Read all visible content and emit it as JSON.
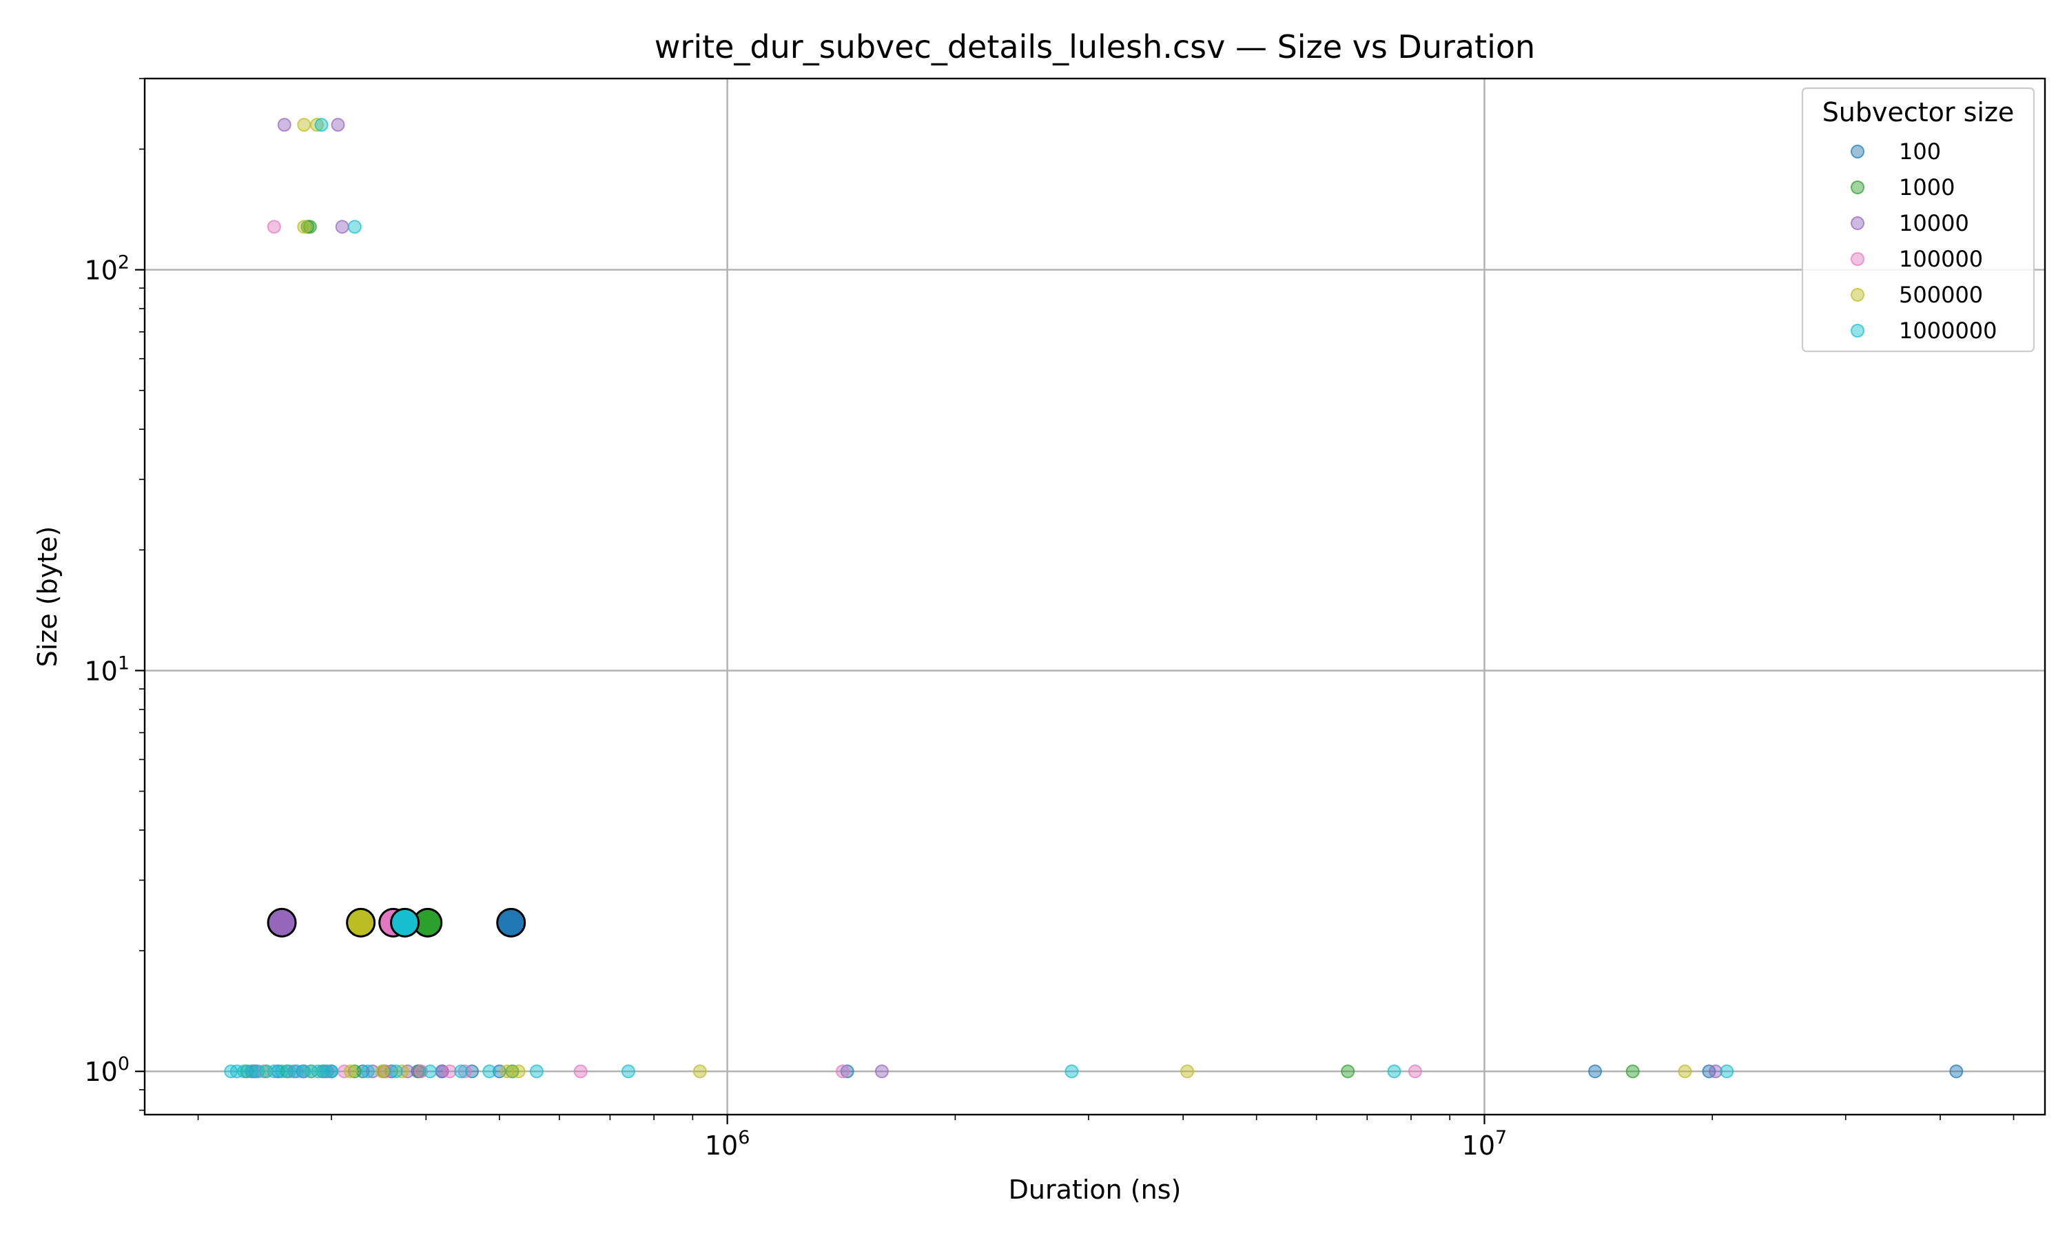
{
  "chart_data": {
    "type": "scatter",
    "title": "write_dur_subvec_details_lulesh.csv — Size vs Duration",
    "xlabel": "Duration (ns)",
    "ylabel": "Size (byte)",
    "xscale": "log",
    "yscale": "log",
    "xlim": [
      170000,
      55000000
    ],
    "ylim": [
      0.78,
      300
    ],
    "grid": true,
    "x_major_ticks": [
      {
        "value": 1000000,
        "base": "10",
        "exp": "6"
      },
      {
        "value": 10000000,
        "base": "10",
        "exp": "7"
      }
    ],
    "y_major_ticks": [
      {
        "value": 1,
        "base": "10",
        "exp": "0"
      },
      {
        "value": 10,
        "base": "10",
        "exp": "1"
      },
      {
        "value": 100,
        "base": "10",
        "exp": "2"
      }
    ],
    "legend": {
      "title": "Subvector size",
      "placement": "top-right"
    },
    "series": [
      {
        "name": "100",
        "color": "#1f77b4",
        "points": [
          [
            238000,
            1
          ],
          [
            255000,
            1
          ],
          [
            275000,
            1
          ],
          [
            300000,
            1
          ],
          [
            330000,
            1
          ],
          [
            360000,
            1
          ],
          [
            390000,
            1
          ],
          [
            420000,
            1
          ],
          [
            460000,
            1
          ],
          [
            500000,
            1
          ],
          [
            1440000,
            1
          ],
          [
            14000000,
            1
          ],
          [
            19800000,
            1
          ],
          [
            42000000,
            1
          ]
        ],
        "mean": [
          518000,
          2.35
        ]
      },
      {
        "name": "1000",
        "color": "#2ca02c",
        "points": [
          [
            232000,
            1
          ],
          [
            262000,
            1
          ],
          [
            292000,
            1
          ],
          [
            322000,
            1
          ],
          [
            352000,
            1
          ],
          [
            392000,
            1
          ],
          [
            520000,
            1
          ],
          [
            6600000,
            1
          ],
          [
            15700000,
            1
          ],
          [
            281000,
            128
          ],
          [
            279000,
            128
          ]
        ],
        "mean": [
          402000,
          2.35
        ]
      },
      {
        "name": "10000",
        "color": "#9467bd",
        "points": [
          [
            236000,
            1
          ],
          [
            268000,
            1
          ],
          [
            296000,
            1
          ],
          [
            340000,
            1
          ],
          [
            378000,
            1
          ],
          [
            420000,
            1
          ],
          [
            1600000,
            1
          ],
          [
            20200000,
            1
          ],
          [
            260000,
            230
          ],
          [
            306000,
            230
          ],
          [
            310000,
            128
          ]
        ],
        "mean": [
          258000,
          2.35
        ]
      },
      {
        "name": "100000",
        "color": "#e377c2",
        "points": [
          [
            244000,
            1
          ],
          [
            276000,
            1
          ],
          [
            312000,
            1
          ],
          [
            354000,
            1
          ],
          [
            394000,
            1
          ],
          [
            430000,
            1
          ],
          [
            450000,
            1
          ],
          [
            640000,
            1
          ],
          [
            1420000,
            1
          ],
          [
            8100000,
            1
          ],
          [
            252000,
            128
          ]
        ],
        "mean": [
          362000,
          2.35
        ]
      },
      {
        "name": "500000",
        "color": "#bcbd22",
        "points": [
          [
            246000,
            1
          ],
          [
            282000,
            1
          ],
          [
            318000,
            1
          ],
          [
            350000,
            1
          ],
          [
            372000,
            1
          ],
          [
            512000,
            1
          ],
          [
            530000,
            1
          ],
          [
            920000,
            1
          ],
          [
            4050000,
            1
          ],
          [
            18400000,
            1
          ],
          [
            276000,
            230
          ],
          [
            287000,
            230
          ],
          [
            276000,
            128
          ]
        ],
        "mean": [
          328000,
          2.35
        ]
      },
      {
        "name": "1000000",
        "color": "#17becf",
        "points": [
          [
            221000,
            1
          ],
          [
            225000,
            1
          ],
          [
            230000,
            1
          ],
          [
            235000,
            1
          ],
          [
            240000,
            1
          ],
          [
            246000,
            1
          ],
          [
            252000,
            1
          ],
          [
            258000,
            1
          ],
          [
            264000,
            1
          ],
          [
            270000,
            1
          ],
          [
            276000,
            1
          ],
          [
            282000,
            1
          ],
          [
            288000,
            1
          ],
          [
            294000,
            1
          ],
          [
            300000,
            1
          ],
          [
            335000,
            1
          ],
          [
            365000,
            1
          ],
          [
            405000,
            1
          ],
          [
            445000,
            1
          ],
          [
            485000,
            1
          ],
          [
            560000,
            1
          ],
          [
            740000,
            1
          ],
          [
            2850000,
            1
          ],
          [
            7600000,
            1
          ],
          [
            20900000,
            1
          ],
          [
            291000,
            230
          ],
          [
            322000,
            128
          ]
        ],
        "mean": [
          375000,
          2.35
        ]
      }
    ]
  }
}
